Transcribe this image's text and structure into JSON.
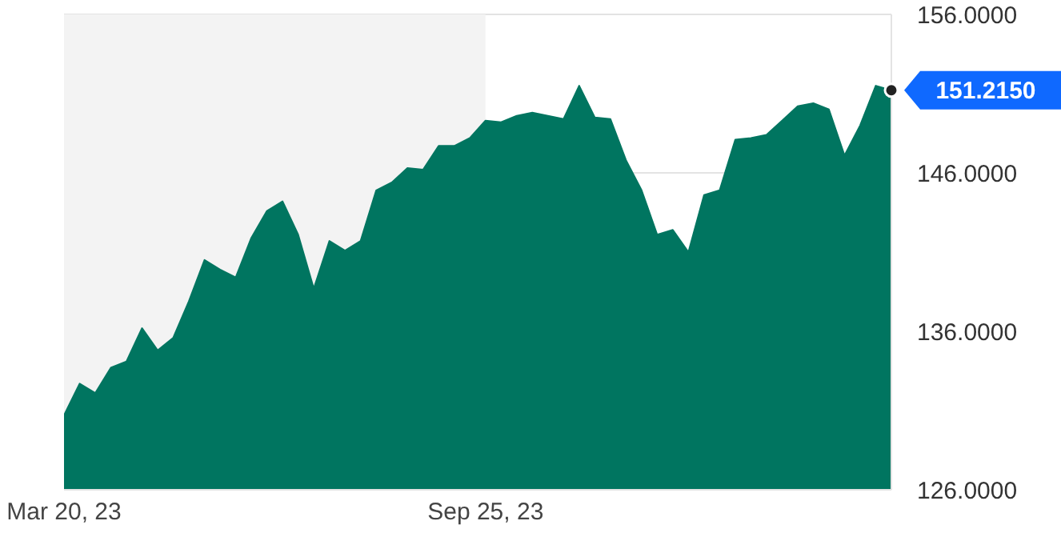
{
  "chart_data": {
    "type": "area",
    "x": [
      "2023-03-20",
      "2023-03-27",
      "2023-04-03",
      "2023-04-10",
      "2023-04-17",
      "2023-04-24",
      "2023-05-01",
      "2023-05-08",
      "2023-05-15",
      "2023-05-22",
      "2023-05-29",
      "2023-06-05",
      "2023-06-12",
      "2023-06-19",
      "2023-06-26",
      "2023-07-03",
      "2023-07-10",
      "2023-07-17",
      "2023-07-24",
      "2023-07-31",
      "2023-08-07",
      "2023-08-14",
      "2023-08-21",
      "2023-08-28",
      "2023-09-04",
      "2023-09-11",
      "2023-09-18",
      "2023-09-25",
      "2023-10-02",
      "2023-10-09",
      "2023-10-16",
      "2023-10-23",
      "2023-10-30",
      "2023-11-06",
      "2023-11-13",
      "2023-11-20",
      "2023-11-27",
      "2023-12-04",
      "2023-12-11",
      "2023-12-18",
      "2023-12-25",
      "2024-01-01",
      "2024-01-08",
      "2024-01-15",
      "2024-01-22",
      "2024-01-29",
      "2024-02-05",
      "2024-02-12",
      "2024-02-19",
      "2024-02-26",
      "2024-03-04",
      "2024-03-11",
      "2024-03-18",
      "2024-03-25"
    ],
    "values": [
      130.7,
      132.7,
      132.1,
      133.7,
      134.1,
      136.2,
      134.8,
      135.6,
      137.9,
      140.5,
      139.9,
      139.4,
      141.9,
      143.6,
      144.2,
      142.1,
      138.7,
      141.7,
      141.1,
      141.7,
      144.9,
      145.4,
      146.3,
      146.2,
      147.7,
      147.7,
      148.2,
      149.3,
      149.2,
      149.6,
      149.8,
      149.6,
      149.4,
      151.5,
      149.5,
      149.4,
      146.8,
      144.9,
      142.1,
      142.4,
      141.0,
      144.6,
      144.9,
      148.1,
      148.2,
      148.4,
      149.3,
      150.2,
      150.4,
      150.0,
      147.1,
      149.0,
      151.5,
      151.215
    ],
    "value_labels": [
      null,
      null,
      null,
      null,
      null,
      null,
      null,
      null,
      null,
      null,
      null,
      null,
      null,
      null,
      null,
      null,
      null,
      null,
      null,
      null,
      null,
      null,
      null,
      null,
      null,
      null,
      null,
      null,
      null,
      null,
      null,
      null,
      null,
      null,
      null,
      null,
      null,
      null,
      null,
      null,
      null,
      null,
      null,
      null,
      null,
      null,
      null,
      null,
      null,
      null,
      null,
      null,
      null,
      "151.2150"
    ],
    "color": "#007560",
    "xlim": [
      "2023-03-20",
      "2024-03-25"
    ],
    "xticks": [
      {
        "value": "2023-03-20",
        "label": "Mar 20, 23"
      },
      {
        "value": "2023-09-25",
        "label": "Sep 25, 23"
      }
    ],
    "ylim": [
      126,
      156
    ],
    "yticks": [
      {
        "value": 126,
        "label": "126.0000"
      },
      {
        "value": 136,
        "label": "136.0000"
      },
      {
        "value": 146,
        "label": "146.0000"
      },
      {
        "value": 156,
        "label": "156.0000"
      }
    ],
    "bands": [
      {
        "axis": "x",
        "from": "2023-03-20",
        "to": "2023-09-25",
        "color": "#f3f3f3"
      }
    ],
    "grid": "y"
  }
}
